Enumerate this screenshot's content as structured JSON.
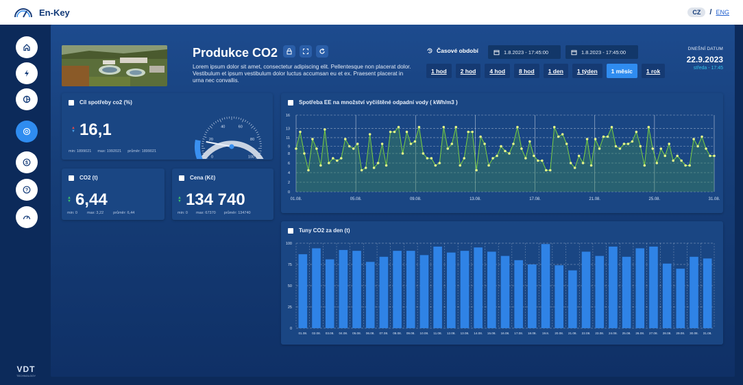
{
  "app": {
    "name": "En-Key"
  },
  "lang": {
    "cz": "CZ",
    "sep": "/",
    "eng": "ENG"
  },
  "sidebar": {
    "items": [
      "home",
      "energy",
      "gas",
      "co2",
      "money",
      "help",
      "dashboard"
    ],
    "active_index": 3
  },
  "brand": {
    "title": "VDT",
    "subtitle": "TECHNOLOGY"
  },
  "page": {
    "title": "Produkce CO2",
    "description": "Lorem ipsum dolor sit amet, consectetur adipiscing elit. Pellentesque non placerat dolor. Vestibulum et ipsum vestibulum dolor luctus accumsan eu et ex. Praesent placerat in urna nec convallis."
  },
  "period": {
    "label": "Časové období",
    "from": "1.8.2023 - 17:45:00",
    "to": "1.8.2023 - 17:45:00",
    "ranges": [
      "1 hod",
      "2 hod",
      "4 hod",
      "8 hod",
      "1 den",
      "1 týden",
      "1 měsíc",
      "1 rok"
    ],
    "active_range": "1 měsíc"
  },
  "today": {
    "label": "DNEŠNÍ DATUM",
    "date": "22.9.2023",
    "day": "středa - 17:45"
  },
  "cards": {
    "goal": {
      "title": "Cíl spotřeby co2 (%)",
      "value": "16,1",
      "min": "min: 1899021",
      "max": "max: 1992021",
      "avg": "průměr: 1899021",
      "gauge": {
        "ticks": [
          "0",
          "20",
          "40",
          "60",
          "80",
          "100"
        ],
        "value": 16.1
      }
    },
    "co2": {
      "title": "CO2 (t)",
      "value": "6,44",
      "min": "min: 0",
      "max": "max: 3,22",
      "avg": "průměr: 6,44"
    },
    "price": {
      "title": "Cena (Kč)",
      "value": "134 740",
      "min": "min: 0",
      "max": "max: 67370",
      "avg": "průměr: 134740"
    }
  },
  "chart_data": [
    {
      "type": "line",
      "title": "Spotřeba EE na množství vyčištěné odpadní vody ( kWh/m3 )",
      "ylim": [
        0,
        16
      ],
      "y_ticks": [
        "0",
        "2",
        "4",
        "6",
        "8",
        "9",
        "11",
        "13",
        "16"
      ],
      "x_labels": [
        "01.08.",
        "05.08.",
        "09.08.",
        "13.08.",
        "17.08.",
        "21.08.",
        "25.08.",
        "31.08."
      ],
      "values": [
        9,
        12.5,
        8,
        4.5,
        11,
        9,
        5.5,
        13,
        6,
        7,
        6.5,
        7,
        11,
        9.5,
        9,
        10,
        4.5,
        5,
        12,
        5,
        6,
        10,
        5.5,
        12.5,
        12.5,
        13.5,
        8,
        12.5,
        10,
        10.5,
        13.5,
        8,
        7,
        7,
        5.5,
        6,
        13.5,
        9,
        10,
        13.5,
        5.5,
        7,
        12.5,
        12.5,
        4.5,
        11.5,
        10,
        5.5,
        7,
        7.5,
        9.5,
        8.5,
        8,
        10,
        13.5,
        9,
        7,
        10.5,
        7.5,
        6.5,
        6.5,
        4.5,
        4.5,
        13.5,
        11.5,
        12,
        10,
        6,
        5,
        7.5,
        6,
        11,
        5.5,
        11,
        9,
        11.5,
        11.5,
        13.5,
        9.5,
        9,
        10,
        10,
        10.5,
        12.5,
        9.5,
        5.5,
        13.5,
        9,
        6,
        9,
        7.5,
        10,
        6.5,
        7.5,
        6.5,
        5.5,
        5.5,
        11,
        9.5,
        11.5,
        9,
        7.5,
        7.5
      ]
    },
    {
      "type": "bar",
      "title": "Tuny CO2 za den (t)",
      "ylim": [
        0,
        100
      ],
      "y_ticks": [
        "0",
        "25",
        "50",
        "75",
        "100"
      ],
      "categories": [
        "01.08.",
        "02.08.",
        "03.08.",
        "04.08.",
        "05.08.",
        "06.08.",
        "07.08.",
        "08.08.",
        "09.08.",
        "10.08.",
        "11.08.",
        "12.08.",
        "13.08.",
        "14.08.",
        "15.08.",
        "16.08.",
        "17.08.",
        "18.08.",
        "19.8.",
        "20.08.",
        "21.08.",
        "22.08.",
        "23.08.",
        "24.08.",
        "25.08.",
        "26.08.",
        "27.08.",
        "28.08.",
        "29.08.",
        "30.08.",
        "31.08."
      ],
      "values": [
        87,
        94,
        81,
        92,
        91,
        78,
        84,
        91,
        91,
        86,
        96,
        89,
        91,
        95,
        90,
        85,
        80,
        75,
        99,
        74,
        68,
        90,
        85,
        96,
        84,
        94,
        96,
        76,
        70,
        84,
        82
      ]
    }
  ]
}
